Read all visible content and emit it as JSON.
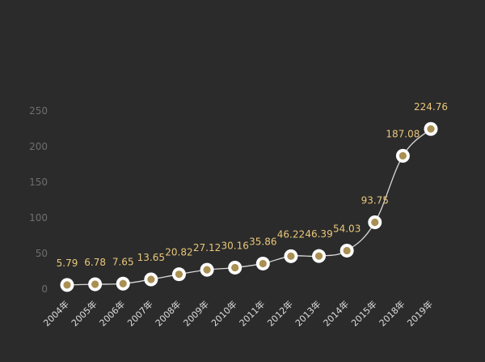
{
  "chart_data": {
    "type": "line",
    "categories": [
      "2004年",
      "2005年",
      "2006年",
      "2007年",
      "2008年",
      "2009年",
      "2010年",
      "2011年",
      "2012年",
      "2013年",
      "2014年",
      "2015年",
      "2018年",
      "2019年"
    ],
    "values": [
      5.79,
      6.78,
      7.65,
      13.65,
      20.82,
      27.12,
      30.16,
      35.86,
      46.22,
      46.39,
      54.03,
      93.75,
      187.08,
      224.76
    ],
    "data_labels": [
      "5.79",
      "6.78",
      "7.65",
      "13.65",
      "20.82",
      "27.12",
      "30.16",
      "35.86",
      "46.22",
      "46.39",
      "54.03",
      "93.75",
      "187.08",
      "224.76"
    ],
    "yticks": [
      "0",
      "50",
      "100",
      "150",
      "200",
      "250"
    ],
    "ylim": [
      0,
      250
    ],
    "grid": false,
    "legend": "none"
  },
  "colors": {
    "background": "#2b2b2b",
    "line": "#d9d9d9",
    "marker_fill": "#a98f52",
    "marker_ring": "#ffffff",
    "label": "#e9c77a",
    "tick": "#6e6e6e",
    "xtick": "#dcdcdc"
  }
}
